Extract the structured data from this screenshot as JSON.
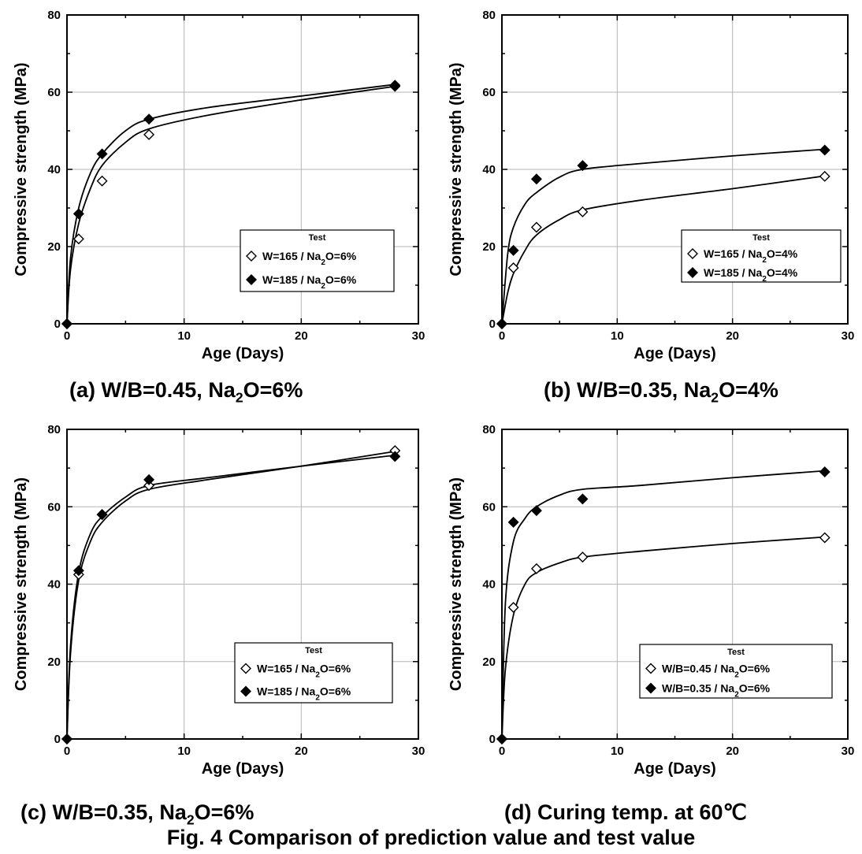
{
  "figure_title": "Fig. 4 Comparison of prediction value and test value",
  "chart_data": [
    {
      "type": "scatter",
      "caption": "(a) W/B=0.45, Na2O=6%",
      "xlabel": "Age (Days)",
      "ylabel": "Compressive strength (MPa)",
      "xlim": [
        0,
        30
      ],
      "ylim": [
        0,
        80
      ],
      "xticks": [
        "0",
        "10",
        "20",
        "30"
      ],
      "yticks": [
        "0",
        "20",
        "40",
        "60",
        "80"
      ],
      "grid": true,
      "legend": {
        "title": "Test",
        "placement": "center-right",
        "entries": [
          "W=165 / Na2O=6%",
          "W=185 / Na2O=6%"
        ]
      },
      "series": [
        {
          "name": "W=165 / Na2O=6%",
          "marker": "open-diamond",
          "x": [
            0,
            1,
            3,
            7,
            28
          ],
          "y": [
            0,
            22,
            37,
            49,
            61.5
          ]
        },
        {
          "name": "W=185 / Na2O=6%",
          "marker": "filled-diamond",
          "x": [
            0,
            1,
            3,
            7,
            28
          ],
          "y": [
            0,
            28.5,
            44,
            53,
            61.8
          ]
        }
      ],
      "prediction_curves": [
        {
          "x": [
            0,
            0.3,
            1,
            2,
            3,
            5,
            7,
            12,
            20,
            28
          ],
          "y": [
            0,
            14,
            26,
            35,
            41,
            47,
            50.5,
            54,
            58,
            61.5
          ]
        },
        {
          "x": [
            0,
            0.3,
            1,
            2,
            3,
            5,
            7,
            12,
            20,
            28
          ],
          "y": [
            0,
            17,
            30,
            39,
            44,
            50,
            53,
            56,
            59,
            62
          ]
        }
      ]
    },
    {
      "type": "scatter",
      "caption": "(b) W/B=0.35, Na2O=4%",
      "xlabel": "Age (Days)",
      "ylabel": "Compressive strength (MPa)",
      "xlim": [
        0,
        30
      ],
      "ylim": [
        0,
        80
      ],
      "xticks": [
        "0",
        "10",
        "20",
        "30"
      ],
      "yticks": [
        "0",
        "20",
        "40",
        "60",
        "80"
      ],
      "grid": true,
      "legend": {
        "title": "Test",
        "placement": "center-right",
        "entries": [
          "W=165 / Na2O=4%",
          "W=185 / Na2O=4%"
        ]
      },
      "series": [
        {
          "name": "W=165 / Na2O=4%",
          "marker": "open-diamond",
          "x": [
            0,
            1,
            3,
            7,
            28
          ],
          "y": [
            0,
            14.5,
            25,
            29,
            38.2
          ]
        },
        {
          "name": "W=185 / Na2O=4%",
          "marker": "filled-diamond",
          "x": [
            0,
            1,
            3,
            7,
            28
          ],
          "y": [
            0,
            19,
            37.5,
            41,
            45
          ]
        }
      ],
      "prediction_curves": [
        {
          "x": [
            0,
            0.5,
            1,
            2,
            3,
            5,
            7,
            12,
            20,
            28
          ],
          "y": [
            0,
            8,
            13,
            19,
            23,
            27,
            29.5,
            32,
            35,
            38.3
          ]
        },
        {
          "x": [
            0,
            0.5,
            1,
            2,
            3,
            5,
            7,
            12,
            20,
            28
          ],
          "y": [
            0,
            18,
            25,
            31,
            34,
            38,
            40,
            41.5,
            43.5,
            45.2
          ]
        }
      ]
    },
    {
      "type": "scatter",
      "caption": "(c) W/B=0.35, Na2O=6%",
      "xlabel": "Age (Days)",
      "ylabel": "Compressive strength (MPa)",
      "xlim": [
        0,
        30
      ],
      "ylim": [
        0,
        80
      ],
      "xticks": [
        "0",
        "10",
        "20",
        "30"
      ],
      "yticks": [
        "0",
        "20",
        "40",
        "60",
        "80"
      ],
      "grid": true,
      "legend": {
        "title": "Test",
        "placement": "center-right",
        "entries": [
          "W=165 / Na2O=6%",
          "W=185 / Na2O=6%"
        ]
      },
      "series": [
        {
          "name": "W=165 / Na2O=6%",
          "marker": "open-diamond",
          "x": [
            0,
            1,
            3,
            7,
            28
          ],
          "y": [
            0,
            42.5,
            58,
            65.5,
            74.5
          ]
        },
        {
          "name": "W=185 / Na2O=6%",
          "marker": "filled-diamond",
          "x": [
            0,
            1,
            3,
            7,
            28
          ],
          "y": [
            0,
            43.5,
            58,
            67,
            73
          ]
        }
      ],
      "prediction_curves": [
        {
          "x": [
            0,
            0.3,
            1,
            2,
            3,
            5,
            7,
            12,
            20,
            28
          ],
          "y": [
            0,
            22,
            41,
            51,
            56,
            61.5,
            64.5,
            67,
            70.5,
            74.3
          ]
        },
        {
          "x": [
            0,
            0.3,
            1,
            2,
            3,
            5,
            7,
            12,
            20,
            28
          ],
          "y": [
            0,
            24,
            43,
            53,
            57.5,
            62.5,
            65.5,
            67.5,
            70.5,
            73.3
          ]
        }
      ]
    },
    {
      "type": "scatter",
      "caption": "(d) Curing temp. at 60℃",
      "xlabel": "Age (Days)",
      "ylabel": "Compressive strength (MPa)",
      "xlim": [
        0,
        30
      ],
      "ylim": [
        0,
        80
      ],
      "xticks": [
        "0",
        "10",
        "20",
        "30"
      ],
      "yticks": [
        "0",
        "20",
        "40",
        "60",
        "80"
      ],
      "grid": true,
      "legend": {
        "title": "Test",
        "placement": "center-right",
        "entries": [
          "W/B=0.45 / Na2O=6%",
          "W/B=0.35 / Na2O=6%"
        ]
      },
      "series": [
        {
          "name": "W/B=0.45 / Na2O=6%",
          "marker": "open-diamond",
          "x": [
            0,
            1,
            3,
            7,
            28
          ],
          "y": [
            0,
            34,
            44,
            47,
            52
          ]
        },
        {
          "name": "W/B=0.35 / Na2O=6%",
          "marker": "filled-diamond",
          "x": [
            0,
            1,
            3,
            7,
            28
          ],
          "y": [
            0,
            56,
            59,
            62,
            69
          ]
        }
      ],
      "prediction_curves": [
        {
          "x": [
            0,
            0.3,
            1,
            2,
            3,
            5,
            7,
            12,
            20,
            28
          ],
          "y": [
            0,
            18,
            32,
            40,
            43,
            45.5,
            47,
            48.5,
            50.5,
            52.2
          ]
        },
        {
          "x": [
            0,
            0.3,
            1,
            2,
            3,
            5,
            7,
            12,
            20,
            28
          ],
          "y": [
            0,
            35,
            51,
            57,
            60,
            63,
            64.5,
            65.5,
            67.5,
            69.3
          ]
        }
      ]
    }
  ]
}
